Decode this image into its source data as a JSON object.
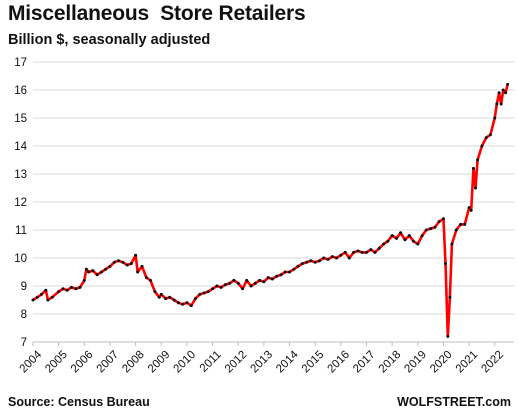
{
  "header": {
    "title": "Miscellaneous  Store Retailers",
    "subtitle": "Billion $, seasonally adjusted"
  },
  "footer": {
    "source": "Source: Census Bureau",
    "brand": "WOLFSTREET.com"
  },
  "colors": {
    "line": "#ff0000",
    "markers": "#111111",
    "grid": "#d9d9d9",
    "text": "#111111"
  },
  "chart_data": {
    "type": "line",
    "title": "Miscellaneous  Store Retailers",
    "subtitle": "Billion $, seasonally adjusted",
    "xlabel": "",
    "ylabel": "",
    "xlim": [
      2004.0,
      2022.75
    ],
    "ylim": [
      7,
      17
    ],
    "y_ticks": [
      7,
      8,
      9,
      10,
      11,
      12,
      13,
      14,
      15,
      16,
      17
    ],
    "x_ticks": [
      "2004",
      "2005",
      "2006",
      "2007",
      "2008",
      "2009",
      "2010",
      "2011",
      "2012",
      "2013",
      "2014",
      "2015",
      "2016",
      "2017",
      "2018",
      "2019",
      "2020",
      "2021",
      "2022"
    ],
    "grid": "horizontal",
    "legend": "none",
    "series": [
      {
        "values": [
          [
            2004.0,
            8.5
          ],
          [
            2004.17,
            8.6
          ],
          [
            2004.33,
            8.7
          ],
          [
            2004.5,
            8.85
          ],
          [
            2004.58,
            8.5
          ],
          [
            2004.75,
            8.6
          ],
          [
            2005.0,
            8.8
          ],
          [
            2005.17,
            8.9
          ],
          [
            2005.33,
            8.85
          ],
          [
            2005.5,
            8.95
          ],
          [
            2005.67,
            8.9
          ],
          [
            2005.83,
            8.95
          ],
          [
            2006.0,
            9.2
          ],
          [
            2006.08,
            9.6
          ],
          [
            2006.17,
            9.5
          ],
          [
            2006.33,
            9.55
          ],
          [
            2006.5,
            9.4
          ],
          [
            2006.67,
            9.5
          ],
          [
            2006.83,
            9.6
          ],
          [
            2007.0,
            9.7
          ],
          [
            2007.17,
            9.85
          ],
          [
            2007.33,
            9.9
          ],
          [
            2007.5,
            9.85
          ],
          [
            2007.67,
            9.75
          ],
          [
            2007.83,
            9.8
          ],
          [
            2008.0,
            10.1
          ],
          [
            2008.08,
            9.5
          ],
          [
            2008.25,
            9.7
          ],
          [
            2008.42,
            9.3
          ],
          [
            2008.58,
            9.2
          ],
          [
            2008.75,
            8.8
          ],
          [
            2008.92,
            8.6
          ],
          [
            2009.0,
            8.7
          ],
          [
            2009.17,
            8.55
          ],
          [
            2009.33,
            8.6
          ],
          [
            2009.5,
            8.5
          ],
          [
            2009.67,
            8.4
          ],
          [
            2009.83,
            8.35
          ],
          [
            2010.0,
            8.4
          ],
          [
            2010.17,
            8.3
          ],
          [
            2010.33,
            8.55
          ],
          [
            2010.5,
            8.7
          ],
          [
            2010.67,
            8.75
          ],
          [
            2010.83,
            8.8
          ],
          [
            2011.0,
            8.9
          ],
          [
            2011.17,
            9.0
          ],
          [
            2011.33,
            8.95
          ],
          [
            2011.5,
            9.05
          ],
          [
            2011.67,
            9.1
          ],
          [
            2011.83,
            9.2
          ],
          [
            2012.0,
            9.1
          ],
          [
            2012.17,
            8.9
          ],
          [
            2012.33,
            9.2
          ],
          [
            2012.5,
            9.0
          ],
          [
            2012.67,
            9.1
          ],
          [
            2012.83,
            9.2
          ],
          [
            2013.0,
            9.15
          ],
          [
            2013.17,
            9.3
          ],
          [
            2013.33,
            9.25
          ],
          [
            2013.5,
            9.35
          ],
          [
            2013.67,
            9.4
          ],
          [
            2013.83,
            9.5
          ],
          [
            2014.0,
            9.5
          ],
          [
            2014.17,
            9.6
          ],
          [
            2014.33,
            9.7
          ],
          [
            2014.5,
            9.8
          ],
          [
            2014.67,
            9.85
          ],
          [
            2014.83,
            9.9
          ],
          [
            2015.0,
            9.85
          ],
          [
            2015.17,
            9.9
          ],
          [
            2015.33,
            10.0
          ],
          [
            2015.5,
            9.95
          ],
          [
            2015.67,
            10.05
          ],
          [
            2015.83,
            10.0
          ],
          [
            2016.0,
            10.1
          ],
          [
            2016.17,
            10.2
          ],
          [
            2016.33,
            10.0
          ],
          [
            2016.5,
            10.2
          ],
          [
            2016.67,
            10.25
          ],
          [
            2016.83,
            10.2
          ],
          [
            2017.0,
            10.2
          ],
          [
            2017.17,
            10.3
          ],
          [
            2017.33,
            10.2
          ],
          [
            2017.5,
            10.35
          ],
          [
            2017.67,
            10.5
          ],
          [
            2017.83,
            10.6
          ],
          [
            2018.0,
            10.8
          ],
          [
            2018.17,
            10.7
          ],
          [
            2018.33,
            10.9
          ],
          [
            2018.5,
            10.65
          ],
          [
            2018.67,
            10.8
          ],
          [
            2018.83,
            10.6
          ],
          [
            2019.0,
            10.5
          ],
          [
            2019.17,
            10.8
          ],
          [
            2019.33,
            11.0
          ],
          [
            2019.5,
            11.05
          ],
          [
            2019.67,
            11.1
          ],
          [
            2019.83,
            11.3
          ],
          [
            2020.0,
            11.4
          ],
          [
            2020.08,
            9.8
          ],
          [
            2020.17,
            7.2
          ],
          [
            2020.25,
            8.6
          ],
          [
            2020.33,
            10.5
          ],
          [
            2020.5,
            11.0
          ],
          [
            2020.67,
            11.2
          ],
          [
            2020.83,
            11.2
          ],
          [
            2021.0,
            11.8
          ],
          [
            2021.08,
            11.7
          ],
          [
            2021.17,
            13.2
          ],
          [
            2021.25,
            12.5
          ],
          [
            2021.33,
            13.5
          ],
          [
            2021.5,
            14.0
          ],
          [
            2021.67,
            14.3
          ],
          [
            2021.83,
            14.4
          ],
          [
            2022.0,
            15.0
          ],
          [
            2022.08,
            15.5
          ],
          [
            2022.17,
            15.9
          ],
          [
            2022.25,
            15.5
          ],
          [
            2022.33,
            16.0
          ],
          [
            2022.42,
            15.9
          ],
          [
            2022.5,
            16.2
          ]
        ]
      }
    ]
  }
}
